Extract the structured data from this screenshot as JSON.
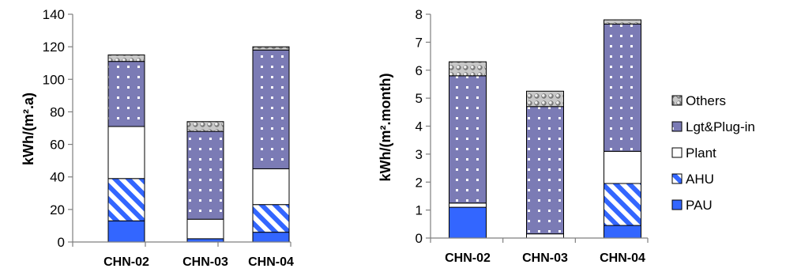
{
  "chart_data": [
    {
      "type": "bar",
      "stacked": true,
      "categories": [
        "CHN-02",
        "CHN-03",
        "CHN-04"
      ],
      "ylabel": "kWh/(m².a)",
      "ylim": [
        0,
        140
      ],
      "yticks": [
        "0",
        "20",
        "40",
        "60",
        "80",
        "100",
        "120",
        "140"
      ],
      "grid": false,
      "series": [
        {
          "name": "PAU",
          "values": [
            13,
            2,
            6
          ]
        },
        {
          "name": "AHU",
          "values": [
            26,
            0,
            17
          ]
        },
        {
          "name": "Plant",
          "values": [
            32,
            12,
            22
          ]
        },
        {
          "name": "Lgt&Plug-in",
          "values": [
            40,
            54,
            73
          ]
        },
        {
          "name": "Others",
          "values": [
            4,
            6,
            2
          ]
        }
      ]
    },
    {
      "type": "bar",
      "stacked": true,
      "categories": [
        "CHN-02",
        "CHN-03",
        "CHN-04"
      ],
      "ylabel": "kWh/(m².month)",
      "ylim": [
        0,
        8
      ],
      "yticks": [
        "0",
        "1",
        "2",
        "3",
        "4",
        "5",
        "6",
        "7",
        "8"
      ],
      "grid": false,
      "legend_position": "right",
      "series": [
        {
          "name": "PAU",
          "values": [
            1.1,
            0.0,
            0.45
          ]
        },
        {
          "name": "AHU",
          "values": [
            0.0,
            0.0,
            1.5
          ]
        },
        {
          "name": "Plant",
          "values": [
            0.15,
            0.15,
            1.15
          ]
        },
        {
          "name": "Lgt&Plug-in",
          "values": [
            4.55,
            4.55,
            4.55
          ]
        },
        {
          "name": "Others",
          "values": [
            0.5,
            0.55,
            0.15
          ]
        }
      ]
    }
  ],
  "legend": {
    "items": [
      "Others",
      "Lgt&Plug-in",
      "Plant",
      "AHU",
      "PAU"
    ]
  },
  "colors": {
    "PAU": "#3366ff",
    "AHU": "#3366ff",
    "Plant": "#ffffff",
    "Lgt&Plug-in": "#7b7bb5",
    "Others": "#c8c8c8",
    "axis": "#7f7f7f"
  }
}
